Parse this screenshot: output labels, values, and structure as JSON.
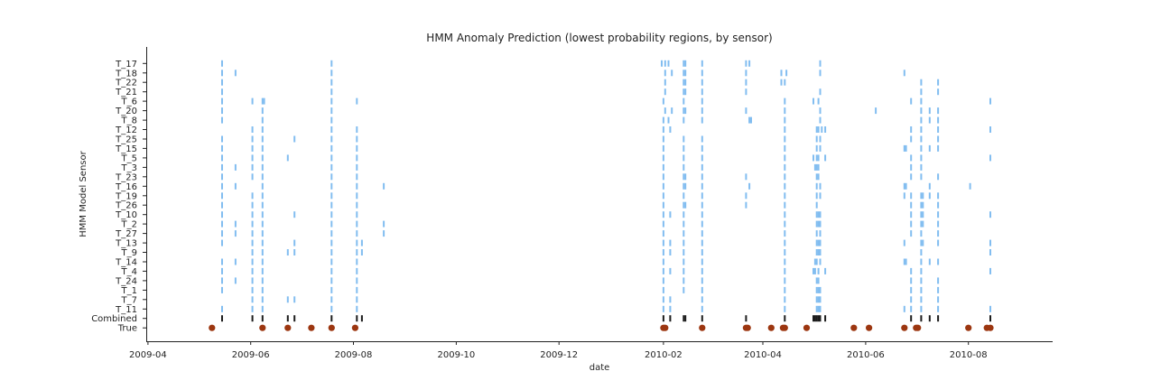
{
  "chart_data": {
    "type": "scatter",
    "title": "HMM Anomaly Prediction (lowest probability regions, by sensor)",
    "xlabel": "date",
    "ylabel": "HMM Model Sensor",
    "x_ticks": [
      "2009-04",
      "2009-06",
      "2009-08",
      "2009-10",
      "2009-12",
      "2010-02",
      "2010-04",
      "2010-06",
      "2010-08"
    ],
    "xlim": [
      "2009-03-31",
      "2010-09-20"
    ],
    "categories": [
      "True",
      "Combined",
      "T_11",
      "T_7",
      "T_1",
      "T_24",
      "T_4",
      "T_14",
      "T_9",
      "T_13",
      "T_27",
      "T_2",
      "T_10",
      "T_26",
      "T_19",
      "T_16",
      "T_23",
      "T_3",
      "T_5",
      "T_15",
      "T_25",
      "T_12",
      "T_8",
      "T_20",
      "T_6",
      "T_21",
      "T_22",
      "T_18",
      "T_17"
    ],
    "colors": {
      "sensor": "#82bdf0",
      "combined": "#1c1c1c",
      "true": "#9c3610"
    },
    "grid": false,
    "legend": "none",
    "series": [
      {
        "category": "T_17",
        "dates": [
          "2009-05-15",
          "2009-07-19",
          "2010-01-31",
          "2010-02-02",
          "2010-02-04",
          "2010-02-13",
          "2010-02-14",
          "2010-02-24",
          "2010-03-22",
          "2010-03-24",
          "2010-05-05"
        ]
      },
      {
        "category": "T_18",
        "dates": [
          "2009-05-15",
          "2009-05-23",
          "2009-07-19",
          "2010-02-02",
          "2010-02-06",
          "2010-02-13",
          "2010-02-14",
          "2010-02-24",
          "2010-03-22",
          "2010-04-12",
          "2010-04-15",
          "2010-05-05",
          "2010-06-24"
        ]
      },
      {
        "category": "T_22",
        "dates": [
          "2009-05-15",
          "2009-07-19",
          "2010-02-02",
          "2010-02-13",
          "2010-02-14",
          "2010-02-24",
          "2010-03-22",
          "2010-04-12",
          "2010-04-14",
          "2010-07-04",
          "2010-07-14"
        ]
      },
      {
        "category": "T_21",
        "dates": [
          "2009-05-15",
          "2009-07-19",
          "2010-02-02",
          "2010-02-13",
          "2010-02-14",
          "2010-02-24",
          "2010-03-22",
          "2010-05-05",
          "2010-07-04",
          "2010-07-14"
        ]
      },
      {
        "category": "T_6",
        "dates": [
          "2009-05-15",
          "2009-06-02",
          "2009-06-08",
          "2009-06-09",
          "2009-07-19",
          "2009-08-03",
          "2010-02-01",
          "2010-02-13",
          "2010-02-24",
          "2010-04-14",
          "2010-05-01",
          "2010-05-04",
          "2010-06-28",
          "2010-07-04",
          "2010-08-14"
        ]
      },
      {
        "category": "T_20",
        "dates": [
          "2009-05-15",
          "2009-06-08",
          "2009-07-19",
          "2010-02-02",
          "2010-02-06",
          "2010-02-13",
          "2010-02-14",
          "2010-02-24",
          "2010-03-22",
          "2010-04-14",
          "2010-05-05",
          "2010-06-07",
          "2010-07-04",
          "2010-07-09",
          "2010-07-14"
        ]
      },
      {
        "category": "T_8",
        "dates": [
          "2009-05-15",
          "2009-06-08",
          "2009-07-19",
          "2010-02-01",
          "2010-02-04",
          "2010-02-13",
          "2010-02-24",
          "2010-03-24",
          "2010-03-25",
          "2010-04-14",
          "2010-05-05",
          "2010-07-04",
          "2010-07-09",
          "2010-07-14"
        ]
      },
      {
        "category": "T_12",
        "dates": [
          "2009-06-02",
          "2009-06-08",
          "2009-07-19",
          "2009-08-03",
          "2010-02-01",
          "2010-02-05",
          "2010-04-14",
          "2010-05-03",
          "2010-05-04",
          "2010-05-06",
          "2010-05-08",
          "2010-06-28",
          "2010-07-04",
          "2010-07-14",
          "2010-08-14"
        ]
      },
      {
        "category": "T_25",
        "dates": [
          "2009-05-15",
          "2009-06-02",
          "2009-06-08",
          "2009-06-27",
          "2009-07-19",
          "2009-08-03",
          "2010-02-01",
          "2010-02-13",
          "2010-02-24",
          "2010-04-14",
          "2010-05-03",
          "2010-05-05",
          "2010-06-28",
          "2010-07-04",
          "2010-07-14"
        ]
      },
      {
        "category": "T_15",
        "dates": [
          "2009-05-15",
          "2009-06-02",
          "2009-06-08",
          "2009-07-19",
          "2009-08-03",
          "2010-02-01",
          "2010-02-13",
          "2010-02-24",
          "2010-04-14",
          "2010-05-03",
          "2010-05-05",
          "2010-06-24",
          "2010-06-25",
          "2010-07-04",
          "2010-07-09",
          "2010-07-14"
        ]
      },
      {
        "category": "T_5",
        "dates": [
          "2009-05-15",
          "2009-06-02",
          "2009-06-08",
          "2009-06-23",
          "2009-07-19",
          "2009-08-03",
          "2010-02-01",
          "2010-02-13",
          "2010-02-24",
          "2010-04-14",
          "2010-05-01",
          "2010-05-03",
          "2010-05-04",
          "2010-05-08",
          "2010-06-28",
          "2010-07-04",
          "2010-08-14"
        ]
      },
      {
        "category": "T_3",
        "dates": [
          "2009-05-15",
          "2009-05-23",
          "2009-06-02",
          "2009-06-08",
          "2009-07-19",
          "2009-08-03",
          "2010-02-01",
          "2010-02-13",
          "2010-02-24",
          "2010-04-14",
          "2010-05-02",
          "2010-05-03",
          "2010-05-04",
          "2010-06-28",
          "2010-07-04"
        ]
      },
      {
        "category": "T_23",
        "dates": [
          "2009-05-15",
          "2009-06-02",
          "2009-06-08",
          "2009-07-19",
          "2009-08-03",
          "2010-02-01",
          "2010-02-13",
          "2010-02-14",
          "2010-02-24",
          "2010-03-22",
          "2010-04-14",
          "2010-05-03",
          "2010-05-04",
          "2010-06-28",
          "2010-07-04",
          "2010-07-14"
        ]
      },
      {
        "category": "T_16",
        "dates": [
          "2009-05-15",
          "2009-05-23",
          "2009-06-08",
          "2009-07-19",
          "2009-08-03",
          "2009-08-19",
          "2010-02-01",
          "2010-02-13",
          "2010-02-14",
          "2010-02-24",
          "2010-03-24",
          "2010-04-14",
          "2010-05-03",
          "2010-05-05",
          "2010-06-24",
          "2010-06-25",
          "2010-07-09",
          "2010-08-02"
        ]
      },
      {
        "category": "T_19",
        "dates": [
          "2009-05-15",
          "2009-06-02",
          "2009-06-08",
          "2009-07-19",
          "2009-08-03",
          "2010-02-01",
          "2010-02-13",
          "2010-02-24",
          "2010-03-22",
          "2010-04-14",
          "2010-05-03",
          "2010-05-05",
          "2010-06-24",
          "2010-06-28",
          "2010-07-04",
          "2010-07-05",
          "2010-07-09",
          "2010-07-14"
        ]
      },
      {
        "category": "T_26",
        "dates": [
          "2009-05-15",
          "2009-06-02",
          "2009-06-08",
          "2009-07-19",
          "2009-08-03",
          "2010-02-01",
          "2010-02-13",
          "2010-02-14",
          "2010-02-24",
          "2010-03-22",
          "2010-04-14",
          "2010-05-03",
          "2010-06-28",
          "2010-07-04",
          "2010-07-05",
          "2010-07-14"
        ]
      },
      {
        "category": "T_10",
        "dates": [
          "2009-05-15",
          "2009-06-02",
          "2009-06-08",
          "2009-06-27",
          "2009-07-19",
          "2009-08-03",
          "2010-02-01",
          "2010-02-05",
          "2010-02-13",
          "2010-02-24",
          "2010-04-14",
          "2010-05-03",
          "2010-05-04",
          "2010-05-05",
          "2010-06-28",
          "2010-07-04",
          "2010-07-05",
          "2010-07-14",
          "2010-08-14"
        ]
      },
      {
        "category": "T_2",
        "dates": [
          "2009-05-15",
          "2009-05-23",
          "2009-06-02",
          "2009-06-08",
          "2009-07-19",
          "2009-08-03",
          "2009-08-19",
          "2010-02-01",
          "2010-02-13",
          "2010-02-24",
          "2010-04-14",
          "2010-05-03",
          "2010-05-04",
          "2010-05-05",
          "2010-06-28",
          "2010-07-04",
          "2010-07-05",
          "2010-07-14"
        ]
      },
      {
        "category": "T_27",
        "dates": [
          "2009-05-15",
          "2009-05-23",
          "2009-06-02",
          "2009-06-08",
          "2009-07-19",
          "2009-08-03",
          "2009-08-19",
          "2010-02-01",
          "2010-02-13",
          "2010-02-24",
          "2010-04-14",
          "2010-05-03",
          "2010-05-05",
          "2010-06-28",
          "2010-07-04",
          "2010-07-14"
        ]
      },
      {
        "category": "T_13",
        "dates": [
          "2009-05-15",
          "2009-06-02",
          "2009-06-08",
          "2009-06-27",
          "2009-07-19",
          "2009-08-03",
          "2009-08-06",
          "2010-02-01",
          "2010-02-05",
          "2010-02-13",
          "2010-02-24",
          "2010-04-14",
          "2010-05-03",
          "2010-05-04",
          "2010-05-05",
          "2010-06-24",
          "2010-07-04",
          "2010-07-05",
          "2010-07-14",
          "2010-08-14"
        ]
      },
      {
        "category": "T_9",
        "dates": [
          "2009-06-02",
          "2009-06-08",
          "2009-06-23",
          "2009-06-27",
          "2009-07-19",
          "2009-08-03",
          "2009-08-06",
          "2010-02-01",
          "2010-02-05",
          "2010-02-13",
          "2010-02-24",
          "2010-04-14",
          "2010-05-03",
          "2010-05-04",
          "2010-05-05",
          "2010-07-04",
          "2010-08-14"
        ]
      },
      {
        "category": "T_14",
        "dates": [
          "2009-05-15",
          "2009-05-23",
          "2009-06-02",
          "2009-06-08",
          "2009-07-19",
          "2009-08-03",
          "2010-02-01",
          "2010-02-13",
          "2010-02-24",
          "2010-04-14",
          "2010-05-02",
          "2010-05-03",
          "2010-05-05",
          "2010-06-24",
          "2010-06-25",
          "2010-07-04",
          "2010-07-09",
          "2010-07-14"
        ]
      },
      {
        "category": "T_4",
        "dates": [
          "2009-05-15",
          "2009-06-02",
          "2009-06-08",
          "2009-07-19",
          "2009-08-03",
          "2010-02-01",
          "2010-02-05",
          "2010-02-13",
          "2010-02-24",
          "2010-04-14",
          "2010-05-01",
          "2010-05-02",
          "2010-05-04",
          "2010-05-08",
          "2010-06-28",
          "2010-07-04",
          "2010-08-14"
        ]
      },
      {
        "category": "T_24",
        "dates": [
          "2009-05-15",
          "2009-05-23",
          "2009-06-02",
          "2009-06-08",
          "2009-07-19",
          "2009-08-03",
          "2010-02-01",
          "2010-02-13",
          "2010-02-24",
          "2010-04-14",
          "2010-05-03",
          "2010-05-04",
          "2010-06-28",
          "2010-07-04",
          "2010-07-14"
        ]
      },
      {
        "category": "T_1",
        "dates": [
          "2009-05-15",
          "2009-06-02",
          "2009-06-08",
          "2009-07-19",
          "2009-08-03",
          "2010-02-01",
          "2010-02-13",
          "2010-02-24",
          "2010-04-14",
          "2010-05-03",
          "2010-05-04",
          "2010-05-05",
          "2010-06-28",
          "2010-07-04",
          "2010-07-14"
        ]
      },
      {
        "category": "T_7",
        "dates": [
          "2009-06-02",
          "2009-06-08",
          "2009-06-23",
          "2009-06-27",
          "2009-07-19",
          "2009-08-03",
          "2010-02-01",
          "2010-02-05",
          "2010-02-24",
          "2010-04-14",
          "2010-05-03",
          "2010-05-04",
          "2010-05-05",
          "2010-06-28",
          "2010-07-04",
          "2010-07-14"
        ]
      },
      {
        "category": "T_11",
        "dates": [
          "2009-05-15",
          "2009-06-02",
          "2009-06-08",
          "2009-07-19",
          "2009-08-03",
          "2010-02-01",
          "2010-02-05",
          "2010-02-24",
          "2010-04-14",
          "2010-05-03",
          "2010-05-04",
          "2010-05-05",
          "2010-06-24",
          "2010-06-28",
          "2010-07-04",
          "2010-07-14",
          "2010-08-14"
        ]
      },
      {
        "category": "Combined",
        "dates": [
          "2009-05-15",
          "2009-06-02",
          "2009-06-08",
          "2009-06-23",
          "2009-06-27",
          "2009-07-19",
          "2009-08-03",
          "2009-08-06",
          "2010-02-01",
          "2010-02-05",
          "2010-02-13",
          "2010-02-14",
          "2010-02-24",
          "2010-03-22",
          "2010-04-14",
          "2010-05-01",
          "2010-05-02",
          "2010-05-03",
          "2010-05-04",
          "2010-05-05",
          "2010-05-08",
          "2010-06-28",
          "2010-07-04",
          "2010-07-09",
          "2010-07-14",
          "2010-08-14"
        ]
      },
      {
        "category": "True",
        "dates": [
          "2009-05-09",
          "2009-06-08",
          "2009-06-23",
          "2009-07-07",
          "2009-07-19",
          "2009-08-02",
          "2010-02-01",
          "2010-02-02",
          "2010-02-24",
          "2010-03-22",
          "2010-03-23",
          "2010-04-06",
          "2010-04-13",
          "2010-04-14",
          "2010-04-27",
          "2010-05-25",
          "2010-06-03",
          "2010-06-24",
          "2010-07-01",
          "2010-07-02",
          "2010-08-01",
          "2010-08-12",
          "2010-08-14"
        ]
      }
    ]
  }
}
